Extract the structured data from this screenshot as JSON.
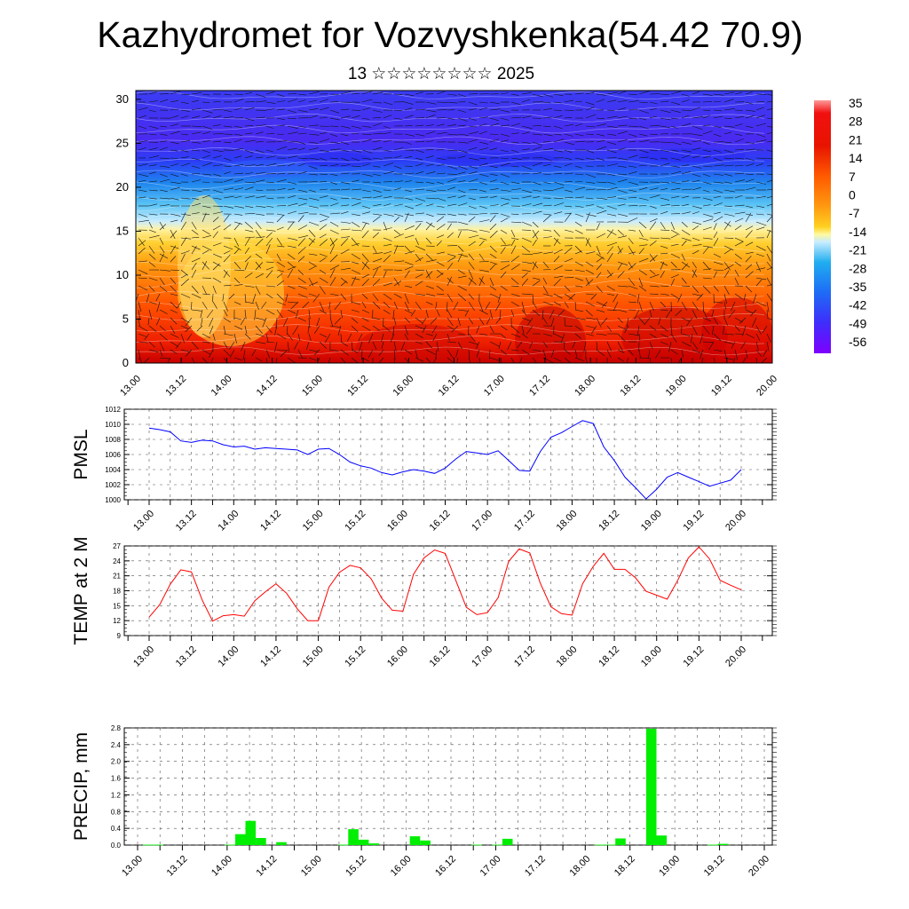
{
  "header": {
    "title": "Kazhydromet for Vozvyshkenka(54.42 70.9)",
    "subtitle": "13 ☆☆☆☆☆☆☆☆ 2025"
  },
  "chart_data": [
    {
      "type": "heatmap",
      "description_id": "cross-section",
      "x_ticks": [
        "13.00",
        "13.12",
        "14.00",
        "14.12",
        "15.00",
        "15.12",
        "16.00",
        "16.12",
        "17.00",
        "17.12",
        "18.00",
        "18.12",
        "19.00",
        "19.12",
        "20.00"
      ],
      "y_ticks": [
        0,
        5,
        10,
        15,
        20,
        25,
        30
      ],
      "ylim": [
        0,
        31
      ],
      "colorbar_labels": [
        "35",
        "28",
        "21",
        "14",
        "7",
        "0",
        "-7",
        "-14",
        "-21",
        "-28",
        "-35",
        "-42",
        "-49",
        "-56"
      ],
      "colormap": [
        "#7f00ff",
        "#3f2dfb",
        "#1e6bf5",
        "#20aef0",
        "#a9e3ff",
        "#fff9a0",
        "#ffd020",
        "#ff9a10",
        "#ff5a00",
        "#e81400",
        "#ff8c8c"
      ],
      "wind_vectors": true
    },
    {
      "type": "line",
      "ylabel": "PMSL",
      "ylim": [
        1000,
        1012
      ],
      "y_ticks": [
        1000,
        1002,
        1004,
        1006,
        1008,
        1010,
        1012
      ],
      "x_ticks": [
        "13.00",
        "13.12",
        "14.00",
        "14.12",
        "15.00",
        "15.12",
        "16.00",
        "16.12",
        "17.00",
        "17.12",
        "18.00",
        "18.12",
        "19.00",
        "19.12",
        "20.00"
      ],
      "color": "#0000ff",
      "series": [
        {
          "values": [
            1009.5,
            1009.3,
            1009.0,
            1007.8,
            1007.6,
            1007.9,
            1007.8,
            1007.3,
            1007.0,
            1007.1,
            1006.7,
            1006.9,
            1006.8,
            1006.7,
            1006.6,
            1006.0,
            1006.7,
            1006.8,
            1006.0,
            1005.0,
            1004.5,
            1004.2,
            1003.6,
            1003.3,
            1003.7,
            1004.0,
            1003.8,
            1003.5,
            1004.2,
            1005.4,
            1006.4,
            1006.2,
            1006.0,
            1006.5,
            1005.2,
            1003.9,
            1003.8,
            1006.4,
            1008.3,
            1008.9,
            1009.7,
            1010.5,
            1010.1,
            1007.0,
            1005.2,
            1003.0,
            1001.6,
            1000.1,
            1001.4,
            1003.0,
            1003.6,
            1003.0,
            1002.4,
            1001.8,
            1002.2,
            1002.6,
            1004.0
          ]
        }
      ]
    },
    {
      "type": "line",
      "ylabel": "TEMP at 2 M",
      "ylim": [
        9,
        27
      ],
      "y_ticks": [
        9,
        12,
        15,
        18,
        21,
        24,
        27
      ],
      "x_ticks": [
        "13.00",
        "13.12",
        "14.00",
        "14.12",
        "15.00",
        "15.12",
        "16.00",
        "16.12",
        "17.00",
        "17.12",
        "18.00",
        "18.12",
        "19.00",
        "19.12",
        "20.00"
      ],
      "color": "#ff0000",
      "series": [
        {
          "values": [
            12.7,
            15.2,
            19.3,
            22.2,
            21.8,
            16.2,
            11.9,
            13.0,
            13.2,
            12.9,
            16.0,
            17.8,
            19.4,
            17.5,
            14.4,
            12.0,
            12.0,
            18.7,
            21.7,
            23.1,
            22.6,
            20.4,
            16.5,
            14.1,
            13.9,
            21.3,
            24.6,
            26.2,
            25.5,
            20.1,
            14.7,
            13.2,
            13.6,
            16.6,
            23.9,
            26.4,
            25.6,
            19.5,
            14.8,
            13.4,
            13.1,
            19.4,
            22.9,
            25.5,
            22.3,
            22.3,
            20.6,
            17.9,
            17.1,
            16.3,
            20.1,
            24.6,
            26.8,
            24.4,
            20.1,
            19.1,
            18.2
          ]
        }
      ]
    },
    {
      "type": "bar",
      "ylabel": "PRECIP, mm",
      "ylim": [
        0,
        2.8
      ],
      "y_ticks": [
        "0.0",
        "0.4",
        "0.8",
        "1.2",
        "1.6",
        "2.0",
        "2.4",
        "2.8"
      ],
      "x_ticks": [
        "13.00",
        "13.12",
        "14.00",
        "14.12",
        "15.00",
        "15.12",
        "16.00",
        "16.12",
        "17.00",
        "17.12",
        "18.00",
        "18.12",
        "19.00",
        "19.12",
        "20.00"
      ],
      "color": "#00ee00",
      "values": [
        0,
        0.01,
        0.01,
        0,
        0,
        0,
        0,
        0,
        0,
        0.01,
        0.26,
        0.58,
        0.17,
        0,
        0.07,
        0,
        0,
        0,
        0,
        0,
        0.01,
        0.38,
        0.13,
        0.04,
        0,
        0,
        0,
        0.21,
        0.11,
        0,
        0,
        0,
        0,
        0.01,
        0,
        0.01,
        0.15,
        0,
        0,
        0,
        0,
        0,
        0,
        0,
        0,
        0.01,
        0.01,
        0.16,
        0,
        0,
        2.78,
        0.23,
        0,
        0,
        0,
        0,
        0.01,
        0.03,
        0,
        0,
        0,
        0
      ]
    }
  ]
}
